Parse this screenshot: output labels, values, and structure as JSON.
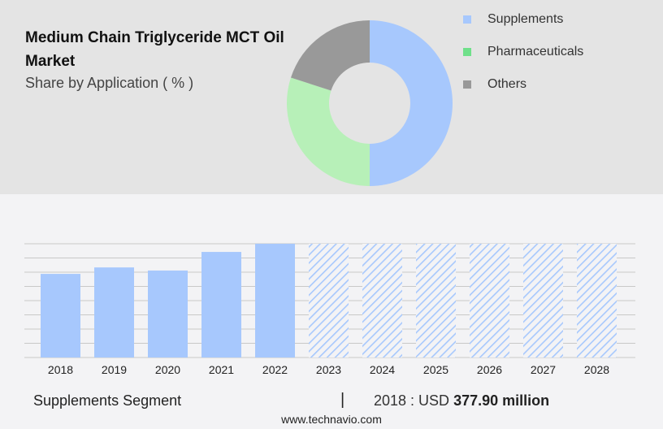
{
  "title": "Medium Chain Triglyceride MCT Oil Market",
  "subtitle": "Share by Application ( % )",
  "footer": {
    "segment": "Supplements Segment",
    "separator": "|",
    "year_label": "2018 : USD",
    "value": "377.90 million"
  },
  "source": "www.technavio.com",
  "chart_data": [
    {
      "type": "pie",
      "subtype": "donut",
      "legend_position": "right",
      "labels": [
        "Supplements",
        "Pharmaceuticals",
        "Others"
      ],
      "values": [
        50,
        30,
        20
      ],
      "colors": [
        "#a7c8fd",
        "#b7f0b8",
        "#999999"
      ],
      "legend_colors": [
        "#a7c8fd",
        "#6fe08a",
        "#999999"
      ]
    },
    {
      "type": "bar",
      "categories": [
        "2018",
        "2019",
        "2020",
        "2021",
        "2022",
        "2023",
        "2024",
        "2025",
        "2026",
        "2027",
        "2028"
      ],
      "values": [
        377.9,
        407,
        393,
        477,
        514,
        null,
        null,
        null,
        null,
        null,
        null
      ],
      "forecast": [
        false,
        false,
        false,
        false,
        false,
        true,
        true,
        true,
        true,
        true,
        true
      ],
      "unit": "USD million",
      "color": "#a7c8fd",
      "grid": true,
      "ylim": [
        0,
        514
      ]
    }
  ]
}
